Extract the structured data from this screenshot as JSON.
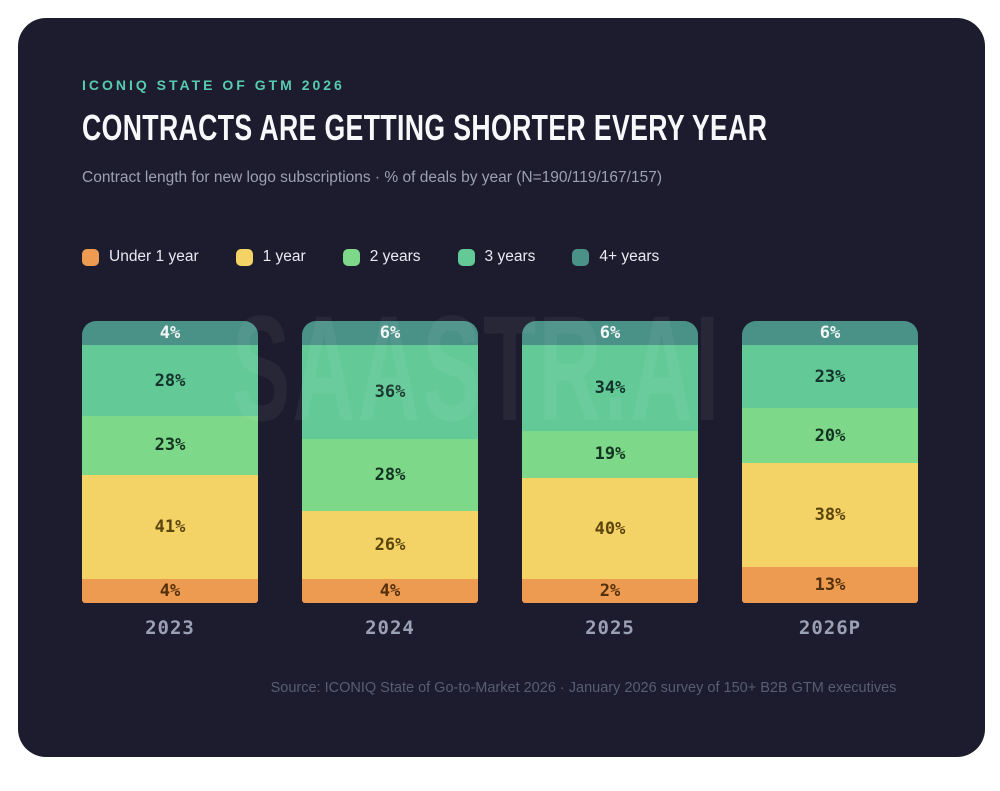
{
  "page": {
    "background": "#ffffff",
    "card_background": "#1d1c2e",
    "accent_teal": "#57cbb0"
  },
  "header": {
    "eyebrow": "ICONIQ STATE OF GTM 2026",
    "title": "CONTRACTS ARE GETTING SHORTER EVERY YEAR",
    "subtitle": "Contract length for new logo subscriptions · % of deals by year (N=190/119/167/157)"
  },
  "watermark": {
    "text": "SAASTR.AI"
  },
  "chart_data": {
    "type": "bar",
    "stacked": true,
    "orientation": "vertical",
    "title": "Contract length for new logo subscriptions · % of deals by year",
    "xlabel": "",
    "ylabel": "% of deals",
    "ylim": [
      0,
      100
    ],
    "grid": false,
    "legend_position": "top",
    "value_suffix": "%",
    "categories": [
      "2023",
      "2024",
      "2025",
      "2026P"
    ],
    "series": [
      {
        "name": "Under 1 year",
        "color": "#ed9b50",
        "label_color": "#542f0b",
        "values": [
          4,
          4,
          2,
          13
        ]
      },
      {
        "name": "1 year",
        "color": "#f3d365",
        "label_color": "#5c440d",
        "values": [
          41,
          26,
          40,
          38
        ]
      },
      {
        "name": "2 years",
        "color": "#7ed889",
        "label_color": "#143321",
        "values": [
          23,
          28,
          19,
          20
        ]
      },
      {
        "name": "3 years",
        "color": "#62c997",
        "label_color": "#14332b",
        "values": [
          28,
          36,
          34,
          23
        ]
      },
      {
        "name": "4+ years",
        "color": "#4a9188",
        "label_color": "#f2f6f5",
        "values": [
          4,
          6,
          6,
          6
        ]
      }
    ]
  },
  "footer": {
    "source": "Source: ICONIQ State of Go-to-Market 2026 · January 2026 survey of 150+ B2B GTM executives"
  }
}
